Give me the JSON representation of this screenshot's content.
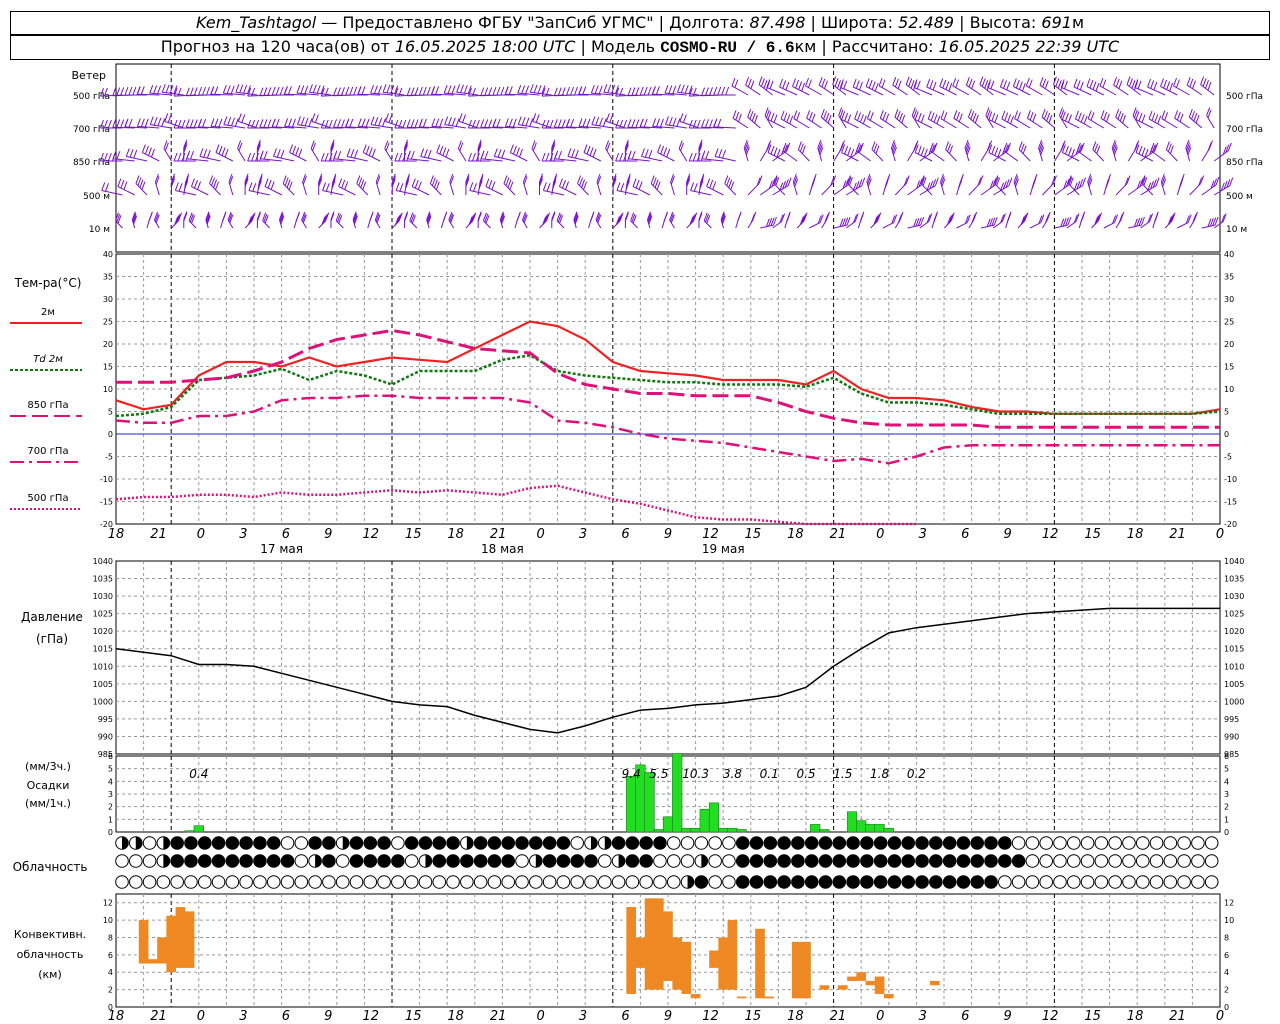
{
  "header": {
    "station": "Kem_Tashtagol",
    "provider_text": "— Предоставлено ФГБУ \"ЗапСиб УГМС\"",
    "lon_label": "Долгота:",
    "lon_value": "87.498",
    "lat_label": "Широта:",
    "lat_value": "52.489",
    "alt_label": "Высота:",
    "alt_value": "691",
    "alt_unit": "м",
    "forecast_label": "Прогноз на 120 часа(ов) от",
    "forecast_start": "16.05.2025 18:00 UTC",
    "model_label": "Модель",
    "model_name": "COSMO-RU / 6.6",
    "model_unit": "км",
    "calc_label": "Рассчитано:",
    "calc_time": "16.05.2025 22:39 UTC"
  },
  "time_axis": {
    "hour_ticks": [
      "18",
      "21",
      "0",
      "3",
      "6",
      "9",
      "12",
      "15",
      "18",
      "21",
      "0",
      "3",
      "6",
      "9",
      "12",
      "15",
      "18",
      "21",
      "0",
      "3",
      "6",
      "9",
      "12",
      "15",
      "18",
      "21",
      "0"
    ],
    "days": [
      "17 мая",
      "18 мая",
      "19 мая"
    ]
  },
  "wind": {
    "title": "Ветер",
    "levels": [
      "500 гПа",
      "700 гПа",
      "850 гПа",
      "500 м",
      "10 м"
    ],
    "right_levels": [
      "500 гПа",
      "700 гПа",
      "850 гПа",
      "500 м",
      "10 м"
    ]
  },
  "temperature": {
    "title": "Тем-ра(°C)",
    "legend": [
      {
        "label": "2м",
        "color": "#ee2222",
        "dash": "solid"
      },
      {
        "label": "Td 2м",
        "color": "#117711",
        "dash": "dot"
      },
      {
        "label": "850 гПа",
        "color": "#dd1177",
        "dash": "dash"
      },
      {
        "label": "700 гПа",
        "color": "#dd1177",
        "dash": "dashdot"
      },
      {
        "label": "500 гПа",
        "color": "#dd1177",
        "dash": "dotted"
      }
    ],
    "ticks": [
      "40",
      "35",
      "30",
      "25",
      "20",
      "15",
      "10",
      "5",
      "0",
      "-5",
      "-10",
      "-15",
      "-20"
    ]
  },
  "pressure": {
    "title_line1": "Давление",
    "title_line2": "(гПа)",
    "ticks": [
      "1040",
      "1035",
      "1030",
      "1025",
      "1020",
      "1015",
      "1010",
      "1005",
      "1000",
      "995",
      "990",
      "985"
    ]
  },
  "precip": {
    "label_line1": "(мм/3ч.)",
    "label_line2": "Осадки",
    "label_line3": "(мм/1ч.)",
    "ticks": [
      "6",
      "5",
      "4",
      "3",
      "2",
      "1",
      "0"
    ],
    "accumulations": [
      {
        "t": 9,
        "text": "0.4"
      },
      {
        "t": 56,
        "text": "9.4"
      },
      {
        "t": 59,
        "text": "5.5"
      },
      {
        "t": 63,
        "text": "10.3"
      },
      {
        "t": 67,
        "text": "3.8"
      },
      {
        "t": 71,
        "text": "0.1"
      },
      {
        "t": 75,
        "text": "0.5"
      },
      {
        "t": 79,
        "text": "1.5"
      },
      {
        "t": 83,
        "text": "1.8"
      },
      {
        "t": 87,
        "text": "0.2"
      }
    ]
  },
  "cloud": {
    "title": "Облачность"
  },
  "convective": {
    "title_line1": "Конвективн.",
    "title_line2": "облачность",
    "title_line3": "(км)",
    "ticks": [
      "12",
      "10",
      "8",
      "6",
      "4",
      "2",
      "0"
    ]
  },
  "colors": {
    "t2m": "#ee2222",
    "td2m": "#117711",
    "upper": "#dd1177",
    "pressure": "#000000",
    "precip": "#22dd22",
    "convective": "#ee8822",
    "wind": "#7711cc",
    "zero_line": "#2222cc"
  },
  "chart_data": [
    {
      "type": "line",
      "name": "temperature",
      "x_unit": "hours from 16.05.2025 18:00 UTC",
      "ylim": [
        -20,
        40
      ],
      "series": [
        {
          "name": "2м",
          "x": [
            0,
            3,
            6,
            9,
            12,
            15,
            18,
            21,
            24,
            27,
            30,
            33,
            36,
            39,
            42,
            45,
            48,
            51,
            54,
            57,
            60,
            63,
            66,
            69,
            72,
            75,
            78,
            81,
            84,
            87,
            90,
            93,
            96,
            99,
            102,
            105,
            108,
            111,
            114,
            117,
            120
          ],
          "values": [
            7.5,
            5.5,
            6.5,
            13,
            16,
            16,
            15,
            17,
            15,
            16,
            17,
            16.5,
            16,
            19,
            22,
            25,
            24,
            21,
            16,
            14,
            13.5,
            13,
            12,
            12,
            12,
            11,
            14,
            10,
            8,
            8,
            7.5,
            6,
            5,
            5,
            4.5,
            4.5,
            4.5,
            4.5,
            4.5,
            4.5,
            5.5
          ]
        },
        {
          "name": "Td 2м",
          "x": [
            0,
            3,
            6,
            9,
            12,
            15,
            18,
            21,
            24,
            27,
            30,
            33,
            36,
            39,
            42,
            45,
            48,
            51,
            54,
            57,
            60,
            63,
            66,
            69,
            72,
            75,
            78,
            81,
            84,
            87,
            90,
            93,
            96,
            99,
            102,
            105,
            108,
            111,
            114,
            117,
            120
          ],
          "values": [
            4,
            4.5,
            6,
            12,
            12.5,
            13,
            14.5,
            12,
            14,
            13,
            11,
            14,
            14,
            14,
            16.5,
            17.5,
            14,
            13,
            12.5,
            12,
            11.5,
            11.5,
            11,
            11,
            11,
            10.5,
            12.5,
            9,
            7,
            7,
            6.5,
            5.5,
            4.5,
            4.5,
            4.5,
            4.5,
            4.5,
            4.5,
            4.5,
            4.5,
            5
          ]
        },
        {
          "name": "850 гПа",
          "x": [
            0,
            3,
            6,
            9,
            12,
            15,
            18,
            21,
            24,
            27,
            30,
            33,
            36,
            39,
            42,
            45,
            48,
            51,
            54,
            57,
            60,
            63,
            66,
            69,
            72,
            75,
            78,
            81,
            84,
            87,
            90,
            93,
            96,
            99,
            102,
            105,
            108,
            111,
            114,
            117,
            120
          ],
          "values": [
            11.5,
            11.5,
            11.5,
            12,
            12.5,
            14,
            16,
            19,
            21,
            22,
            23,
            22,
            20.5,
            19,
            18.5,
            18,
            13.5,
            11,
            10,
            9,
            9,
            8.5,
            8.5,
            8.5,
            7,
            5,
            3.5,
            2.5,
            2,
            2,
            2,
            2,
            1.5,
            1.5,
            1.5,
            1.5,
            1.5,
            1.5,
            1.5,
            1.5,
            1.5
          ]
        },
        {
          "name": "700 гПа",
          "x": [
            0,
            3,
            6,
            9,
            12,
            15,
            18,
            21,
            24,
            27,
            30,
            33,
            36,
            39,
            42,
            45,
            48,
            51,
            54,
            57,
            60,
            63,
            66,
            69,
            72,
            75,
            78,
            81,
            84,
            87,
            90,
            93,
            96,
            99,
            102,
            105,
            108,
            111,
            114,
            117,
            120
          ],
          "values": [
            3,
            2.5,
            2.5,
            4,
            4,
            5,
            7.5,
            8,
            8,
            8.5,
            8.5,
            8,
            8,
            8,
            8,
            7,
            3,
            2.5,
            1.5,
            0,
            -1,
            -1.5,
            -2,
            -3,
            -4,
            -5,
            -6,
            -5.5,
            -6.5,
            -5,
            -3,
            -2.5,
            -2.5,
            -2.5,
            -2.5,
            -2.5,
            -2.5,
            -2.5,
            -2.5,
            -2.5,
            -2.5
          ]
        },
        {
          "name": "500 гПа",
          "x": [
            0,
            3,
            6,
            9,
            12,
            15,
            18,
            21,
            24,
            27,
            30,
            33,
            36,
            39,
            42,
            45,
            48,
            51,
            54,
            57,
            60,
            63,
            66,
            69,
            72,
            75,
            78,
            81,
            84,
            87
          ],
          "values": [
            -14.5,
            -14,
            -14,
            -13.5,
            -13.5,
            -14,
            -13,
            -13.5,
            -13.5,
            -13,
            -12.5,
            -13,
            -12.5,
            -13,
            -13.5,
            -12,
            -11.5,
            -13,
            -14.5,
            -15.5,
            -17,
            -18.5,
            -19,
            -19,
            -19.5,
            -20,
            -20,
            -20,
            -20,
            -20
          ]
        }
      ]
    },
    {
      "type": "line",
      "name": "pressure",
      "ylim": [
        985,
        1040
      ],
      "x": [
        0,
        3,
        6,
        9,
        12,
        15,
        18,
        21,
        24,
        27,
        30,
        33,
        36,
        39,
        42,
        45,
        48,
        51,
        54,
        57,
        60,
        63,
        66,
        69,
        72,
        75,
        78,
        81,
        84,
        87,
        90,
        93,
        96,
        99,
        102,
        105,
        108,
        111,
        114,
        117,
        120
      ],
      "values": [
        1015,
        1014,
        1013,
        1010.5,
        1010.5,
        1010,
        1008,
        1006,
        1004,
        1002,
        1000,
        999,
        998.5,
        996,
        994,
        992,
        991,
        993,
        995.5,
        997.5,
        998,
        999,
        999.5,
        1000.5,
        1001.5,
        1004,
        1010,
        1015,
        1019.5,
        1021,
        1022,
        1023,
        1024,
        1025,
        1025.5,
        1026,
        1026.5,
        1026.5,
        1026.5,
        1026.5,
        1026.5
      ]
    },
    {
      "type": "bar",
      "name": "precipitation_1h",
      "ylim": [
        0,
        6
      ],
      "x": [
        8,
        9,
        56,
        57,
        58,
        59,
        60,
        61,
        62,
        63,
        64,
        65,
        66,
        67,
        68,
        76,
        77,
        80,
        81,
        82,
        83,
        84
      ],
      "values": [
        0.1,
        0.5,
        4.4,
        5.3,
        4.7,
        0.2,
        1.2,
        6.2,
        0.3,
        0.3,
        1.8,
        2.3,
        0.3,
        0.3,
        0.2,
        0.6,
        0.2,
        1.6,
        0.9,
        0.6,
        0.6,
        0.3
      ]
    },
    {
      "type": "bar",
      "name": "convective_cloud",
      "ylim": [
        0,
        13
      ],
      "bars": [
        {
          "x": 3,
          "base": 5,
          "top": 10
        },
        {
          "x": 4,
          "base": 5,
          "top": 5.5
        },
        {
          "x": 5,
          "base": 5,
          "top": 8
        },
        {
          "x": 6,
          "base": 4,
          "top": 10.5
        },
        {
          "x": 7,
          "base": 4.5,
          "top": 11.5
        },
        {
          "x": 8,
          "base": 4.5,
          "top": 11
        },
        {
          "x": 56,
          "base": 1.5,
          "top": 11.5
        },
        {
          "x": 57,
          "base": 4.5,
          "top": 8
        },
        {
          "x": 58,
          "base": 2,
          "top": 12.5
        },
        {
          "x": 59,
          "base": 2,
          "top": 12.5
        },
        {
          "x": 60,
          "base": 3,
          "top": 11
        },
        {
          "x": 61,
          "base": 2,
          "top": 8
        },
        {
          "x": 62,
          "base": 1.5,
          "top": 7.5
        },
        {
          "x": 63,
          "base": 1,
          "top": 1.5
        },
        {
          "x": 65,
          "base": 4.5,
          "top": 6.5
        },
        {
          "x": 66,
          "base": 2,
          "top": 8
        },
        {
          "x": 67,
          "base": 2,
          "top": 10
        },
        {
          "x": 68,
          "base": 1,
          "top": 1.2
        },
        {
          "x": 70,
          "base": 1,
          "top": 9
        },
        {
          "x": 71,
          "base": 1,
          "top": 1.2
        },
        {
          "x": 74,
          "base": 1,
          "top": 7.5
        },
        {
          "x": 75,
          "base": 1,
          "top": 7.5
        },
        {
          "x": 77,
          "base": 2,
          "top": 2.5
        },
        {
          "x": 79,
          "base": 2,
          "top": 2.5
        },
        {
          "x": 80,
          "base": 3,
          "top": 3.5
        },
        {
          "x": 81,
          "base": 3,
          "top": 4
        },
        {
          "x": 82,
          "base": 2.5,
          "top": 3
        },
        {
          "x": 83,
          "base": 1.5,
          "top": 3.5
        },
        {
          "x": 84,
          "base": 1,
          "top": 1.5
        },
        {
          "x": 89,
          "base": 2.5,
          "top": 3
        }
      ]
    }
  ]
}
